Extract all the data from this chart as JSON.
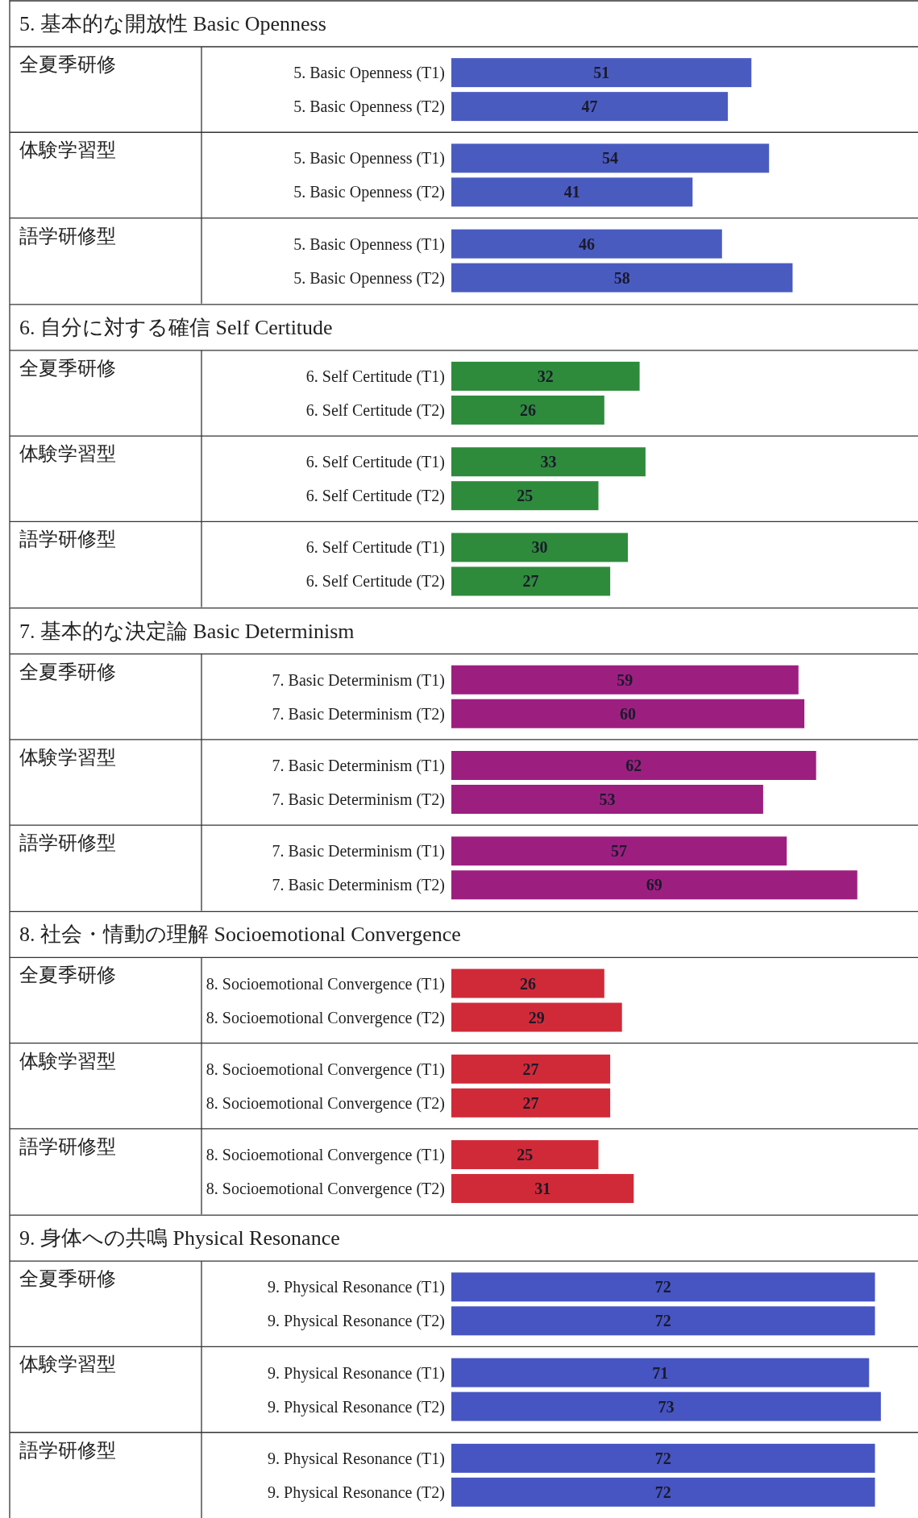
{
  "chart_data": [
    {
      "type": "bar",
      "orientation": "horizontal",
      "title": "5. 基本的な開放性 Basic Openness",
      "categories": [
        "5. Basic Openness (T1)",
        "5. Basic Openness (T2)",
        "5. Basic Openness (T1)",
        "5. Basic Openness (T2)",
        "5. Basic Openness (T1)",
        "5. Basic Openness (T2)"
      ],
      "values": [
        51,
        47,
        54,
        41,
        46,
        58
      ],
      "color": "#4a5bc0",
      "data_labels": true,
      "annotations": [
        "全夏季研修",
        "体験学習型",
        "語学研修型"
      ]
    },
    {
      "type": "bar",
      "orientation": "horizontal",
      "title": "6. 自分に対する確信 Self Certitude",
      "categories": [
        "6. Self Certitude (T1)",
        "6. Self Certitude (T2)",
        "6. Self Certitude (T1)",
        "6. Self Certitude (T2)",
        "6. Self Certitude (T1)",
        "6. Self Certitude (T2)"
      ],
      "values": [
        32,
        26,
        33,
        25,
        30,
        27
      ],
      "color": "#2e8b3c",
      "data_labels": true,
      "annotations": [
        "全夏季研修",
        "体験学習型",
        "語学研修型"
      ]
    },
    {
      "type": "bar",
      "orientation": "horizontal",
      "title": "7. 基本的な決定論 Basic Determinism",
      "categories": [
        "7. Basic Determinism (T1)",
        "7. Basic Determinism (T2)",
        "7. Basic Determinism (T1)",
        "7. Basic Determinism (T2)",
        "7. Basic Determinism (T1)",
        "7. Basic Determinism (T2)"
      ],
      "values": [
        59,
        60,
        62,
        53,
        57,
        69
      ],
      "color": "#9c1f80",
      "data_labels": true,
      "annotations": [
        "全夏季研修",
        "体験学習型",
        "語学研修型"
      ]
    },
    {
      "type": "bar",
      "orientation": "horizontal",
      "title": "8. 社会・情動の理解 Socioemotional Convergence",
      "categories": [
        "8. Socioemotional Convergence (T1)",
        "8. Socioemotional Convergence (T2)",
        "8. Socioemotional Convergence (T1)",
        "8. Socioemotional Convergence (T2)",
        "8. Socioemotional Convergence (T1)",
        "8. Socioemotional Convergence (T2)"
      ],
      "values": [
        26,
        29,
        27,
        27,
        25,
        31
      ],
      "color": "#d02a38",
      "data_labels": true,
      "annotations": [
        "全夏季研修",
        "体験学習型",
        "語学研修型"
      ]
    },
    {
      "type": "bar",
      "orientation": "horizontal",
      "title": "9. 身体への共鳴 Physical Resonance",
      "categories": [
        "9. Physical Resonance (T1)",
        "9. Physical Resonance (T2)",
        "9. Physical Resonance (T1)",
        "9. Physical Resonance (T2)",
        "9. Physical Resonance (T1)",
        "9. Physical Resonance (T2)"
      ],
      "values": [
        72,
        72,
        71,
        73,
        72,
        72
      ],
      "color": "#4655c2",
      "data_labels": true,
      "annotations": [
        "全夏季研修",
        "体験学習型",
        "語学研修型"
      ]
    }
  ]
}
